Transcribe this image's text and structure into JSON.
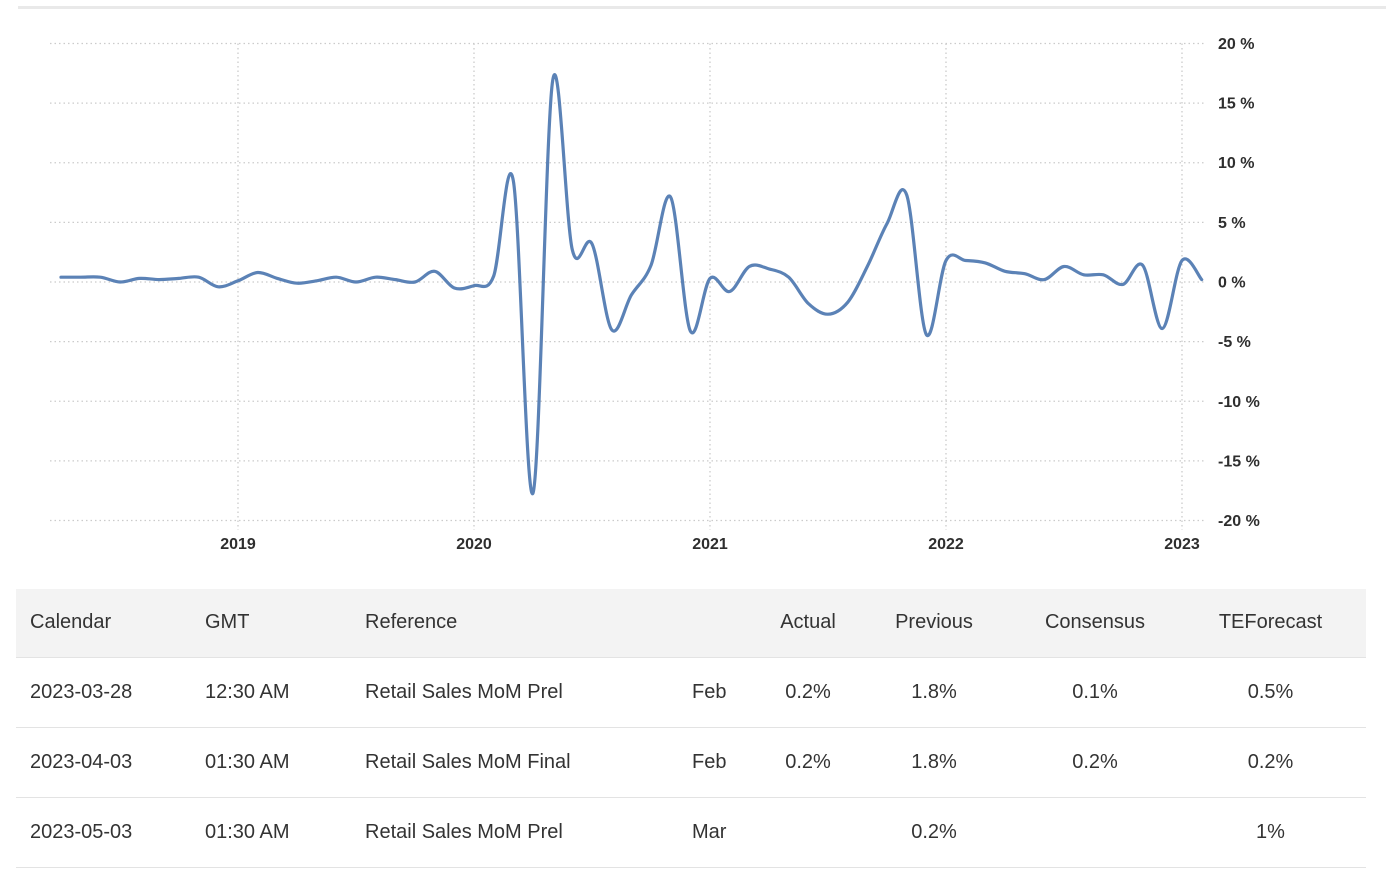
{
  "chart_data": {
    "type": "line",
    "title": "",
    "xlabel": "",
    "ylabel": "",
    "unit": "percent",
    "grid": true,
    "legend": "none",
    "y_axis_side": "right",
    "ylim": [
      -20,
      20
    ],
    "y_ticks": [
      20,
      15,
      10,
      5,
      0,
      -5,
      -10,
      -15,
      -20
    ],
    "y_tick_labels": [
      "20 %",
      "15 %",
      "10 %",
      "5 %",
      "0 %",
      "-5 %",
      "-10 %",
      "-15 %",
      "-20 %"
    ],
    "x_tick_labels": [
      "2019",
      "2020",
      "2021",
      "2022",
      "2023"
    ],
    "series": [
      {
        "name": "Retail Sales MoM",
        "frequency": "monthly",
        "x_start": "2018-04",
        "x_end": "2023-02",
        "values": [
          0.4,
          0.4,
          0.4,
          0.0,
          0.3,
          0.2,
          0.3,
          0.4,
          -0.4,
          0.1,
          0.8,
          0.3,
          -0.1,
          0.1,
          0.4,
          0.0,
          0.4,
          0.2,
          0.0,
          0.9,
          -0.5,
          -0.3,
          0.5,
          8.5,
          -17.7,
          16.9,
          2.7,
          3.2,
          -4.0,
          -1.1,
          1.4,
          7.1,
          -4.1,
          0.3,
          -0.8,
          1.3,
          1.1,
          0.4,
          -1.8,
          -2.7,
          -1.7,
          1.3,
          4.9,
          7.3,
          -4.4,
          1.8,
          1.8,
          1.6,
          0.9,
          0.7,
          0.2,
          1.3,
          0.6,
          0.6,
          -0.2,
          1.4,
          -3.9,
          1.8,
          0.2
        ]
      }
    ]
  },
  "table": {
    "headers": [
      "Calendar",
      "GMT",
      "Reference",
      "",
      "Actual",
      "Previous",
      "Consensus",
      "TEForecast"
    ],
    "rows": [
      [
        "2023-03-28",
        "12:30 AM",
        "Retail Sales MoM Prel",
        "Feb",
        "0.2%",
        "1.8%",
        "0.1%",
        "0.5%"
      ],
      [
        "2023-04-03",
        "01:30 AM",
        "Retail Sales MoM Final",
        "Feb",
        "0.2%",
        "1.8%",
        "0.2%",
        "0.2%"
      ],
      [
        "2023-05-03",
        "01:30 AM",
        "Retail Sales MoM Prel",
        "Mar",
        "",
        "0.2%",
        "",
        "1%"
      ]
    ]
  },
  "colors": {
    "line": "#5b82b6",
    "grid": "#cbcbcb",
    "axis_text": "#2e2e2e",
    "table_text": "#333333",
    "header_bg": "#f3f3f3",
    "row_border": "#e3e3e3",
    "divider": "#e9e9e9"
  }
}
